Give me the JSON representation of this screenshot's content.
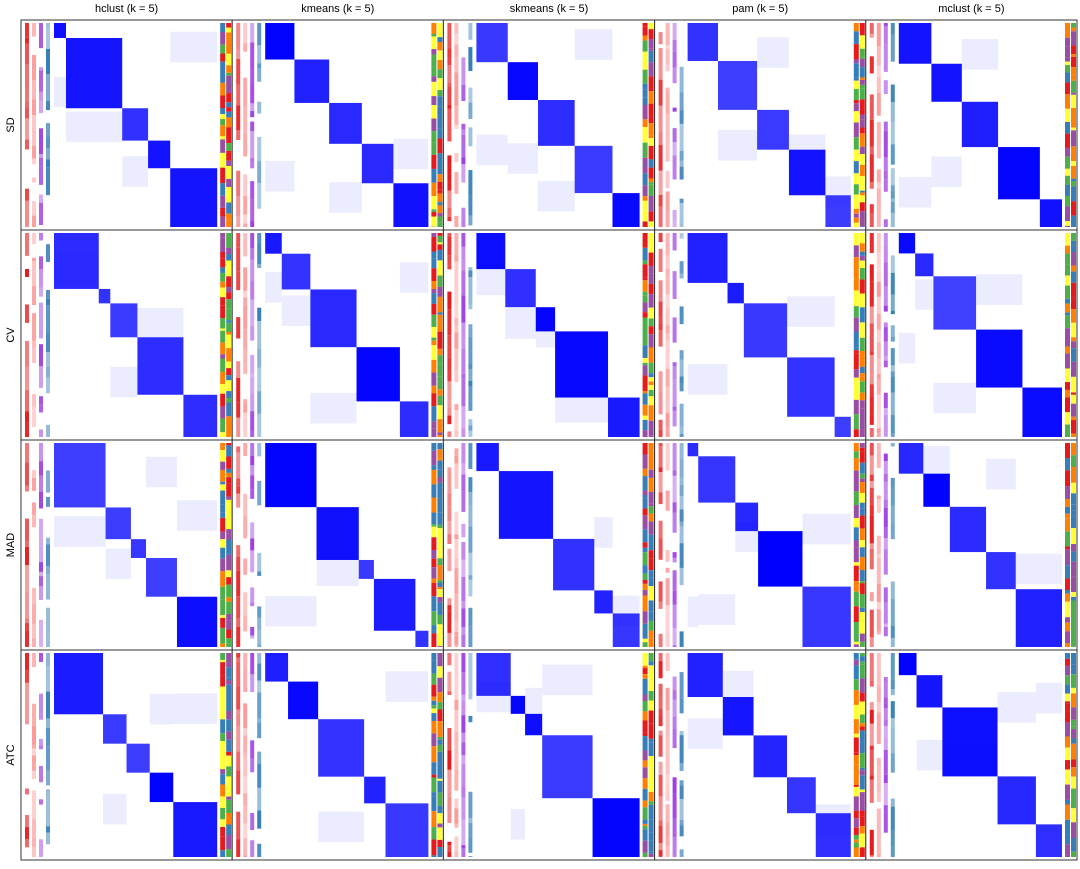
{
  "columns": [
    "hclust (k = 5)",
    "kmeans (k = 5)",
    "skmeans (k = 5)",
    "pam (k = 5)",
    "mclust (k = 5)"
  ],
  "rows": [
    "SD",
    "CV",
    "MAD",
    "ATC"
  ]
}
